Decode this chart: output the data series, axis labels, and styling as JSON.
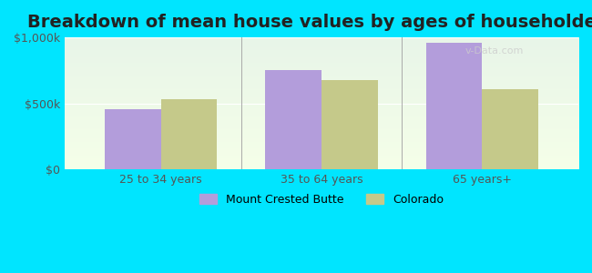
{
  "title": "Breakdown of mean house values by ages of householders",
  "categories": [
    "25 to 34 years",
    "35 to 64 years",
    "65 years+"
  ],
  "series": {
    "Mount Crested Butte": [
      460000,
      750000,
      960000
    ],
    "Colorado": [
      530000,
      680000,
      610000
    ]
  },
  "bar_colors": {
    "Mount Crested Butte": "#b39ddb",
    "Colorado": "#c5c98a"
  },
  "ylim": [
    0,
    1000000
  ],
  "yticks": [
    0,
    500000,
    1000000
  ],
  "ytick_labels": [
    "$0",
    "$500k",
    "$1,000k"
  ],
  "background_color": "#00e5ff",
  "plot_bg_gradient_top": "#e8f5e9",
  "plot_bg_gradient_bottom": "#f9ffe9",
  "title_fontsize": 14,
  "tick_fontsize": 9,
  "legend_fontsize": 9,
  "bar_width": 0.35,
  "watermark": "v-Data.com"
}
